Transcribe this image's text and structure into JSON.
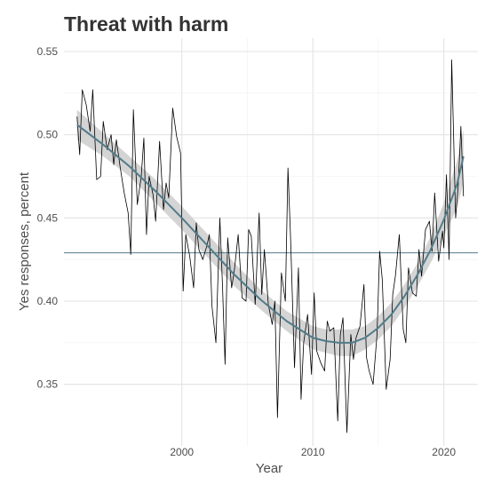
{
  "chart_data": {
    "type": "line",
    "title": "Threat with harm",
    "xlabel": "Year",
    "ylabel": "Yes responses, percent",
    "xlim": [
      1991,
      2022.6
    ],
    "ylim": [
      0.313,
      0.558
    ],
    "x_ticks": [
      2000,
      2010,
      2020
    ],
    "y_ticks": [
      0.35,
      0.4,
      0.45,
      0.5,
      0.55
    ],
    "y_tick_labels": [
      "0.35",
      "0.40",
      "0.45",
      "0.50",
      "0.55"
    ],
    "x_tick_labels": [
      "2000",
      "2010",
      "2020"
    ],
    "grid": true,
    "reference_line": 0.429,
    "colors": {
      "raw": "#000000",
      "smooth": "#527b8a",
      "band": "#cccccc",
      "reference": "#527b8a",
      "grid": "#e3e3e3"
    },
    "series": [
      {
        "kind": "raw",
        "x": [
          1992.0,
          1992.2,
          1992.4,
          1992.7,
          1993.0,
          1993.2,
          1993.5,
          1993.8,
          1994.0,
          1994.3,
          1994.6,
          1994.8,
          1995.0,
          1995.3,
          1995.6,
          1995.9,
          1996.1,
          1996.3,
          1996.6,
          1996.9,
          1997.1,
          1997.3,
          1997.5,
          1997.8,
          1998.0,
          1998.3,
          1998.6,
          1998.8,
          1999.0,
          1999.3,
          1999.6,
          1999.9,
          2000.1,
          2000.3,
          2000.6,
          2000.9,
          2001.1,
          2001.3,
          2001.6,
          2001.9,
          2002.1,
          2002.3,
          2002.6,
          2002.9,
          2003.1,
          2003.3,
          2003.5,
          2003.8,
          2004.0,
          2004.3,
          2004.6,
          2004.9,
          2005.1,
          2005.3,
          2005.6,
          2005.9,
          2006.1,
          2006.3,
          2006.6,
          2006.9,
          2007.1,
          2007.3,
          2007.6,
          2007.9,
          2008.1,
          2008.3,
          2008.6,
          2008.9,
          2009.1,
          2009.3,
          2009.6,
          2009.9,
          2010.1,
          2010.3,
          2010.6,
          2010.9,
          2011.1,
          2011.3,
          2011.6,
          2011.9,
          2012.1,
          2012.3,
          2012.6,
          2012.9,
          2013.1,
          2013.3,
          2013.6,
          2013.9,
          2014.1,
          2014.3,
          2014.6,
          2014.9,
          2015.1,
          2015.3,
          2015.6,
          2015.9,
          2016.1,
          2016.3,
          2016.6,
          2016.9,
          2017.1,
          2017.3,
          2017.6,
          2017.9,
          2018.1,
          2018.3,
          2018.6,
          2018.9,
          2019.1,
          2019.3,
          2019.6,
          2019.9,
          2020.0,
          2020.2,
          2020.4,
          2020.6,
          2020.9,
          2021.1,
          2021.3,
          2021.5
        ],
        "y": [
          0.511,
          0.488,
          0.527,
          0.518,
          0.502,
          0.527,
          0.473,
          0.475,
          0.508,
          0.491,
          0.5,
          0.482,
          0.497,
          0.48,
          0.465,
          0.453,
          0.428,
          0.515,
          0.458,
          0.475,
          0.498,
          0.44,
          0.475,
          0.464,
          0.448,
          0.496,
          0.455,
          0.471,
          0.462,
          0.516,
          0.499,
          0.489,
          0.406,
          0.44,
          0.427,
          0.408,
          0.447,
          0.431,
          0.425,
          0.433,
          0.44,
          0.397,
          0.375,
          0.45,
          0.41,
          0.362,
          0.438,
          0.408,
          0.418,
          0.44,
          0.402,
          0.4,
          0.443,
          0.439,
          0.398,
          0.453,
          0.404,
          0.431,
          0.398,
          0.386,
          0.4,
          0.33,
          0.417,
          0.4,
          0.48,
          0.438,
          0.36,
          0.42,
          0.341,
          0.375,
          0.392,
          0.356,
          0.405,
          0.37,
          0.363,
          0.358,
          0.388,
          0.382,
          0.384,
          0.328,
          0.38,
          0.39,
          0.321,
          0.38,
          0.365,
          0.378,
          0.385,
          0.41,
          0.366,
          0.358,
          0.35,
          0.38,
          0.43,
          0.413,
          0.347,
          0.365,
          0.404,
          0.415,
          0.44,
          0.383,
          0.375,
          0.42,
          0.405,
          0.403,
          0.431,
          0.415,
          0.443,
          0.448,
          0.43,
          0.465,
          0.424,
          0.442,
          0.432,
          0.476,
          0.425,
          0.545,
          0.45,
          0.47,
          0.505,
          0.463
        ]
      },
      {
        "kind": "smooth",
        "x": [
          1992,
          1994,
          1996,
          1998,
          2000,
          2002,
          2004,
          2006,
          2008,
          2010,
          2011,
          2012,
          2013,
          2014,
          2015,
          2016,
          2017,
          2018,
          2019,
          2020,
          2021,
          2021.5
        ],
        "y": [
          0.506,
          0.494,
          0.481,
          0.466,
          0.45,
          0.433,
          0.416,
          0.401,
          0.388,
          0.378,
          0.376,
          0.375,
          0.375,
          0.378,
          0.384,
          0.392,
          0.403,
          0.416,
          0.431,
          0.449,
          0.47,
          0.487
        ],
        "band": [
          0.009,
          0.007,
          0.006,
          0.007,
          0.007,
          0.007,
          0.007,
          0.006,
          0.006,
          0.007,
          0.007,
          0.008,
          0.008,
          0.007,
          0.007,
          0.007,
          0.007,
          0.007,
          0.008,
          0.01,
          0.014,
          0.016
        ]
      }
    ]
  }
}
